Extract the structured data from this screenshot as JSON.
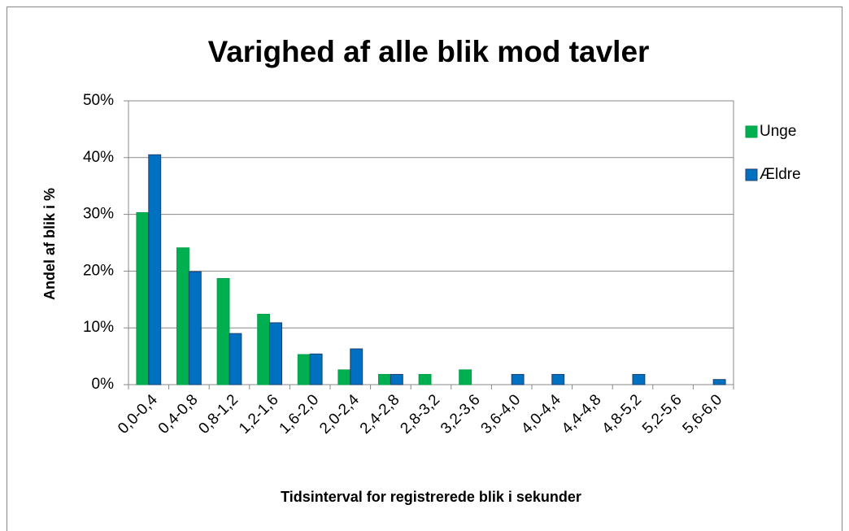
{
  "chart_data": {
    "type": "bar",
    "title": "Varighed af alle blik mod tavler",
    "x_label": "Tidsinterval for registrerede blik i sekunder",
    "y_label": "Andel  af  blik i %",
    "categories": [
      "0,0-0,4",
      "0,4-0,8",
      "0,8-1,2",
      "1,2-1,6",
      "1,6-2,0",
      "2,0-2,4",
      "2,4-2,8",
      "2,8-3,2",
      "3,2-3,6",
      "3,6-4,0",
      "4,0-4,4",
      "4,4-4,8",
      "4,8-5,2",
      "5,2-5,6",
      "5,6-6,0"
    ],
    "series": [
      {
        "name": "Unge",
        "color": "#00b050",
        "border": "#00a04a",
        "values": [
          30.3,
          24.1,
          18.7,
          12.4,
          5.3,
          2.6,
          1.8,
          1.8,
          2.6,
          0,
          0,
          0,
          0,
          0,
          0
        ]
      },
      {
        "name": "Ældre",
        "color": "#0070c0",
        "border": "#1f3f6f",
        "values": [
          40.5,
          19.9,
          9.0,
          10.9,
          5.4,
          6.3,
          1.8,
          0,
          0,
          1.8,
          1.8,
          0,
          1.8,
          0,
          0.9
        ]
      }
    ],
    "ylim": [
      0,
      50
    ],
    "yticks": [
      {
        "value": 0,
        "label": "0%"
      },
      {
        "value": 10,
        "label": "10%"
      },
      {
        "value": 20,
        "label": "20%"
      },
      {
        "value": 30,
        "label": "30%"
      },
      {
        "value": 40,
        "label": "40%"
      },
      {
        "value": 50,
        "label": "50%"
      }
    ],
    "grid": true,
    "legend": "right"
  }
}
